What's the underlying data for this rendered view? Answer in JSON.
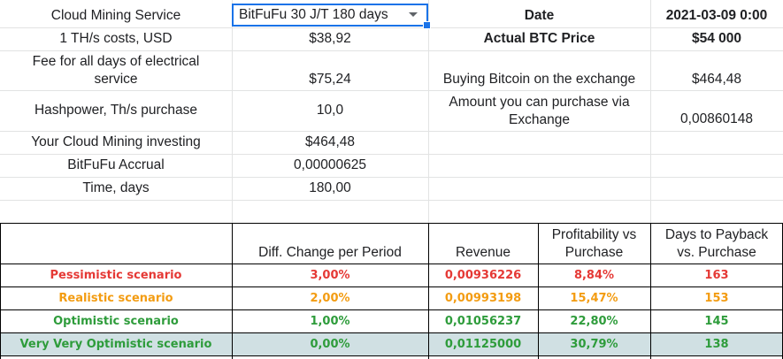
{
  "colors": {
    "pessimistic": "#e53935",
    "realistic": "#f39c12",
    "optimistic": "#2e9c3b",
    "very_optimistic": "#2e9c3b",
    "very_optimistic_bg": "#d0e0e3",
    "selection": "#1a73e8"
  },
  "left": {
    "rows": [
      {
        "label": "Cloud Mining Service",
        "value": ""
      },
      {
        "label": "1 TH/s costs, USD",
        "value": "$38,92"
      },
      {
        "label": "Fee for all days of electrical\nservice",
        "value": "$75,24"
      },
      {
        "label": "Hashpower, Th/s purchase",
        "value": "10,0"
      },
      {
        "label": "Your Cloud Mining investing",
        "value": "$464,48"
      },
      {
        "label": "BitFuFu Accrual",
        "value": "0,00000625"
      },
      {
        "label": "Time, days",
        "value": "180,00"
      }
    ],
    "service_select": {
      "value": "BitFuFu 30 J/T 180 days",
      "icon": "chevron-down-icon"
    }
  },
  "right": {
    "rows": [
      {
        "label": "Date",
        "value": "2021-03-09 0:00"
      },
      {
        "label": "Actual BTC Price",
        "value": "$54 000"
      },
      {
        "label": "Buying Bitcoin on the exchange",
        "value": "$464,48"
      },
      {
        "label": "Amount you can purchase via\nExchange",
        "value": "0,00860148"
      }
    ]
  },
  "scenarios": {
    "headers": [
      "",
      "Diff. Change per Period",
      "Revenue",
      "Profitability vs\nPurchase",
      "Days to Payback\nvs. Purchase"
    ],
    "rows": [
      {
        "name": "Pessimistic scenario",
        "diff": "3,00%",
        "revenue": "0,00936226",
        "profit": "8,84%",
        "days": "163"
      },
      {
        "name": "Realistic scenario",
        "diff": "2,00%",
        "revenue": "0,00993198",
        "profit": "15,47%",
        "days": "153"
      },
      {
        "name": "Optimistic scenario",
        "diff": "1,00%",
        "revenue": "0,01056237",
        "profit": "22,80%",
        "days": "145"
      },
      {
        "name": "Very Very Optimistic scenario",
        "diff": "0,00%",
        "revenue": "0,01125000",
        "profit": "30,79%",
        "days": "138"
      }
    ]
  }
}
